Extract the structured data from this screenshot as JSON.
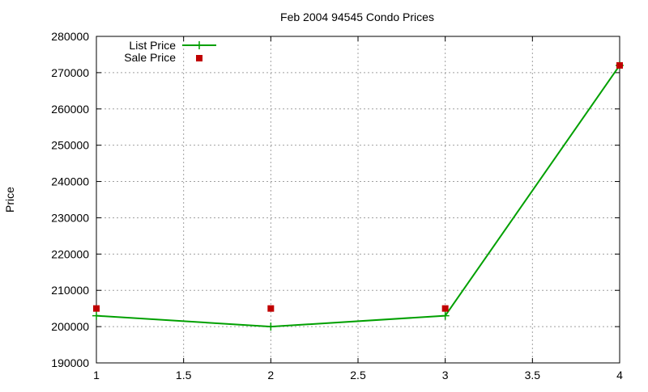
{
  "chart_data": {
    "type": "line",
    "title": "Feb 2004 94545 Condo Prices",
    "xlabel": "",
    "ylabel": "Price",
    "xlim": [
      1,
      4
    ],
    "ylim": [
      190000,
      280000
    ],
    "xticks": [
      "1",
      "1.5",
      "2",
      "2.5",
      "3",
      "3.5",
      "4"
    ],
    "yticks": [
      "190000",
      "200000",
      "210000",
      "220000",
      "230000",
      "240000",
      "250000",
      "260000",
      "270000",
      "280000"
    ],
    "grid": true,
    "legend_position": "top-left",
    "x": [
      1,
      2,
      3,
      4
    ],
    "series": [
      {
        "name": "List Price",
        "style": "linespoints",
        "color": "#00a000",
        "values": [
          203000,
          200000,
          203000,
          272000
        ]
      },
      {
        "name": "Sale Price",
        "style": "points",
        "color": "#c00000",
        "values": [
          205000,
          205000,
          205000,
          272000
        ]
      }
    ]
  }
}
